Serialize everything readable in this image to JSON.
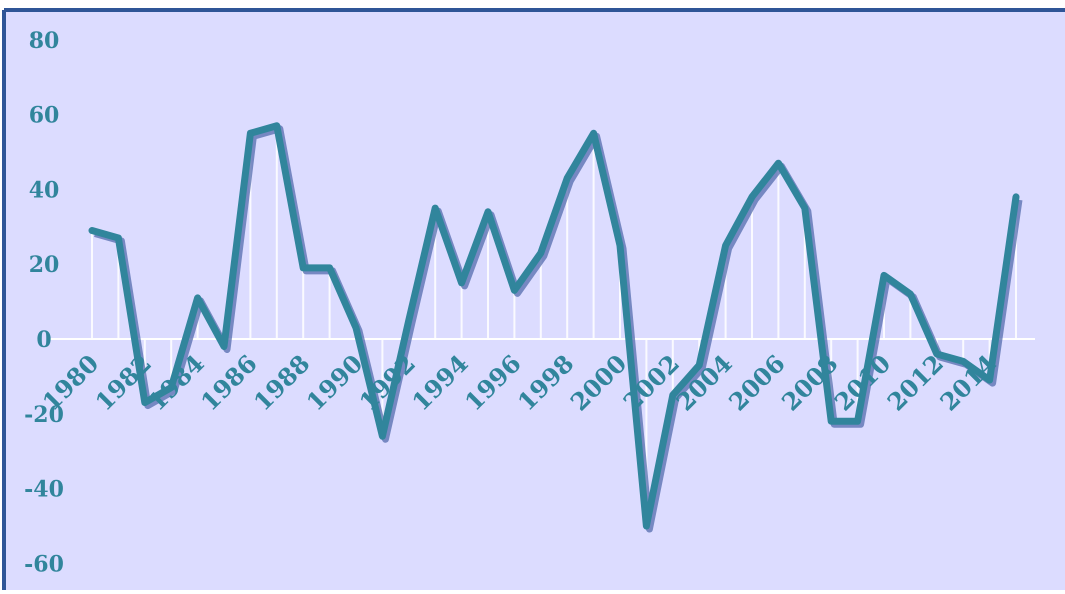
{
  "colors": {
    "background": "#dcdcff",
    "border": "#2f5597",
    "line": "#31859c",
    "line_shadow": "#4a64a8",
    "label": "#31859c",
    "zero_axis": "#ffffff",
    "drop_lines": "#ffffff"
  },
  "chart_data": {
    "type": "line",
    "title": "",
    "xlabel": "",
    "ylabel": "",
    "ylim": [
      -60,
      80
    ],
    "yticks": [
      -60,
      -40,
      -20,
      0,
      20,
      40,
      60,
      80
    ],
    "x": [
      1980,
      1981,
      1982,
      1983,
      1984,
      1985,
      1986,
      1987,
      1988,
      1989,
      1990,
      1991,
      1992,
      1993,
      1994,
      1995,
      1996,
      1997,
      1998,
      1999,
      2000,
      2001,
      2002,
      2003,
      2004,
      2005,
      2006,
      2007,
      2008,
      2009,
      2010,
      2011,
      2012,
      2013,
      2014,
      2015
    ],
    "xtick_labels": [
      "1980",
      "1982",
      "1984",
      "1986",
      "1988",
      "1990",
      "1992",
      "1994",
      "1996",
      "1998",
      "2000",
      "2002",
      "2004",
      "2006",
      "2008",
      "2010",
      "2012",
      "2014"
    ],
    "series": [
      {
        "values": [
          29,
          27,
          -17,
          -13,
          11,
          -2,
          55,
          57,
          19,
          19,
          3,
          -26,
          5,
          35,
          15,
          34,
          13,
          23,
          43,
          55,
          25,
          -50,
          -15,
          -7,
          25,
          38,
          47,
          35,
          -22,
          -22,
          17,
          12,
          -4,
          -6,
          -11,
          38
        ]
      }
    ],
    "drop_lines": true,
    "grid": false,
    "legend": "none"
  }
}
